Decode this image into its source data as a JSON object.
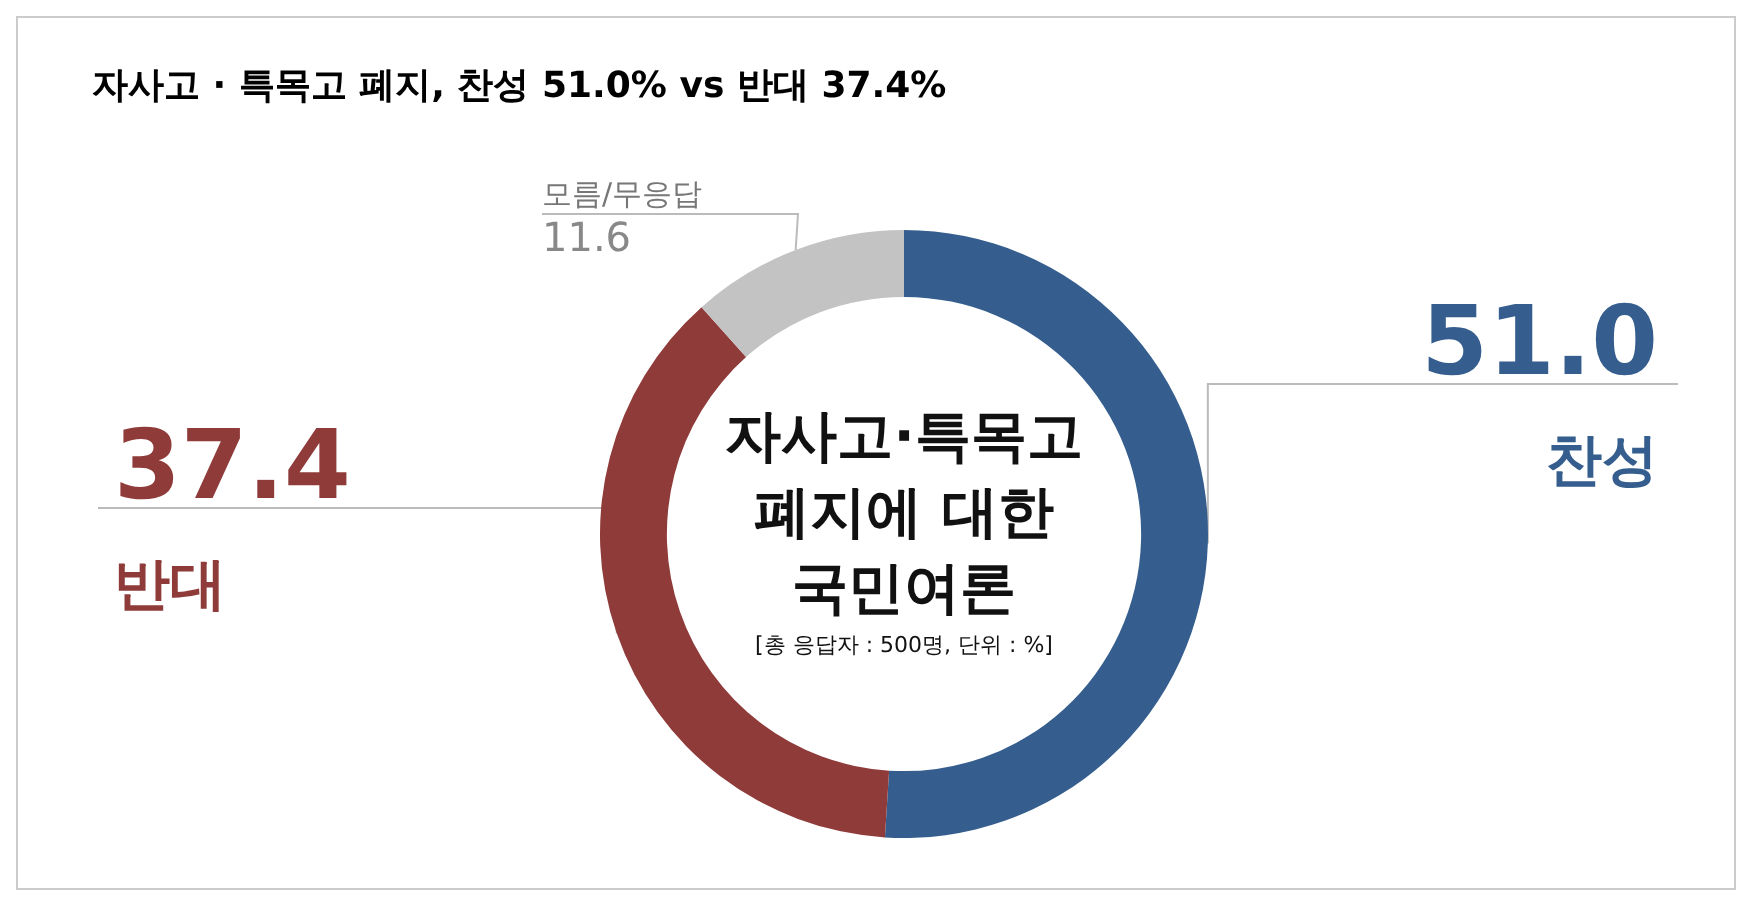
{
  "chart_data": {
    "type": "donut",
    "title": "자사고 · 특목고 폐지, 찬성 51.0% vs 반대 37.4%",
    "categories": [
      "찬성",
      "반대",
      "모름/무응답"
    ],
    "values": [
      51.0,
      37.4,
      11.6
    ],
    "colors": [
      "#355e8e",
      "#8f3b3a",
      "#c3c3c3"
    ],
    "value_labels": [
      "51.0",
      "37.4",
      "11.6"
    ],
    "annotations": [
      "자사고·특목고\n폐지에 대한\n국민여론",
      "[총 응답자 : 500명, 단위 : %]"
    ]
  }
}
